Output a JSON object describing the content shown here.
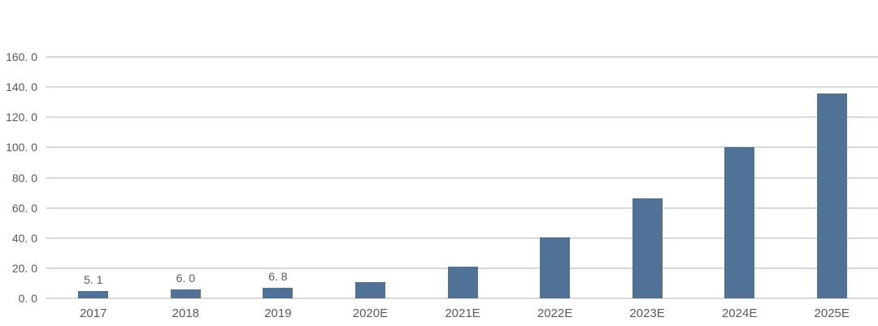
{
  "chart_data": {
    "type": "bar",
    "title": "",
    "xlabel": "",
    "ylabel": "",
    "categories": [
      "2017",
      "2018",
      "2019",
      "2020E",
      "2021E",
      "2022E",
      "2023E",
      "2024E",
      "2025E"
    ],
    "values": [
      5.1,
      6.0,
      6.8,
      10.6,
      20.8,
      40.5,
      66.0,
      100.3,
      135.8
    ],
    "value_labels": [
      "5. 1",
      "6. 0",
      "6. 8",
      "",
      "",
      "",
      "",
      "",
      ""
    ],
    "y_ticks": [
      {
        "value": 0,
        "label": "0. 0"
      },
      {
        "value": 20,
        "label": "20. 0"
      },
      {
        "value": 40,
        "label": "40. 0"
      },
      {
        "value": 60,
        "label": "60. 0"
      },
      {
        "value": 80,
        "label": "80. 0"
      },
      {
        "value": 100,
        "label": "100. 0"
      },
      {
        "value": 120,
        "label": "120. 0"
      },
      {
        "value": 140,
        "label": "140. 0"
      },
      {
        "value": 160,
        "label": "160. 0"
      }
    ],
    "ylim": [
      0,
      160
    ],
    "grid": true,
    "legend": "none",
    "colors": {
      "bar": "#4F7296",
      "gridline": "#D9D9D9",
      "axis_text": "#595959",
      "value_label_text": "#595959",
      "background": "#FFFFFF"
    }
  }
}
